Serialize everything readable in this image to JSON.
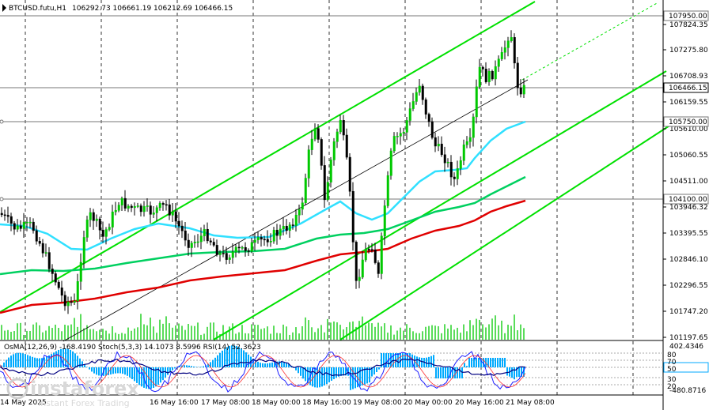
{
  "header": {
    "symbol": "BTCUSD.futu,H1",
    "ohlc": "106292.73 106661.19 106212.69 106466.15"
  },
  "price_axis": {
    "ticks": [
      "107824.35",
      "107275.80",
      "106708.93",
      "106159.55",
      "105610.00",
      "105060.55",
      "104511.00",
      "103946.32",
      "103395.55",
      "102846.10",
      "102296.55",
      "101747.20",
      "101197.65"
    ],
    "tags": [
      "107950.00",
      "106466.15",
      "105750.00",
      "104100.00"
    ],
    "current": "106466.15"
  },
  "indicator": {
    "title": "OsMA(12,26,9) -168.4190  Stoch(5,3,3) 14.1073 8.5996  RSI(14) 52.3623",
    "ticks": [
      "402.4346",
      "80",
      "70",
      "50",
      "30",
      "20",
      "-480.8716"
    ]
  },
  "time_axis": {
    "labels": [
      "14 May 2025",
      "16 May 16:00",
      "17 May 08:00",
      "18 May 00:00",
      "18 May 16:00",
      "19 May 08:00",
      "20 May 00:00",
      "20 May 16:00",
      "21 May 08:00"
    ]
  },
  "watermark": {
    "brand": "instaforex",
    "tagline": "Instant Forex Trading"
  },
  "colors": {
    "background": "#ffffff",
    "bull": "#00c800",
    "bear": "#000000",
    "ema_red": "#e00000",
    "ema_green": "#00d060",
    "ema_cyan": "#30e0ff",
    "channel": "#00e000",
    "osma": "#00aaff",
    "stoch": "#2020ff",
    "rsi": "#000080"
  }
}
